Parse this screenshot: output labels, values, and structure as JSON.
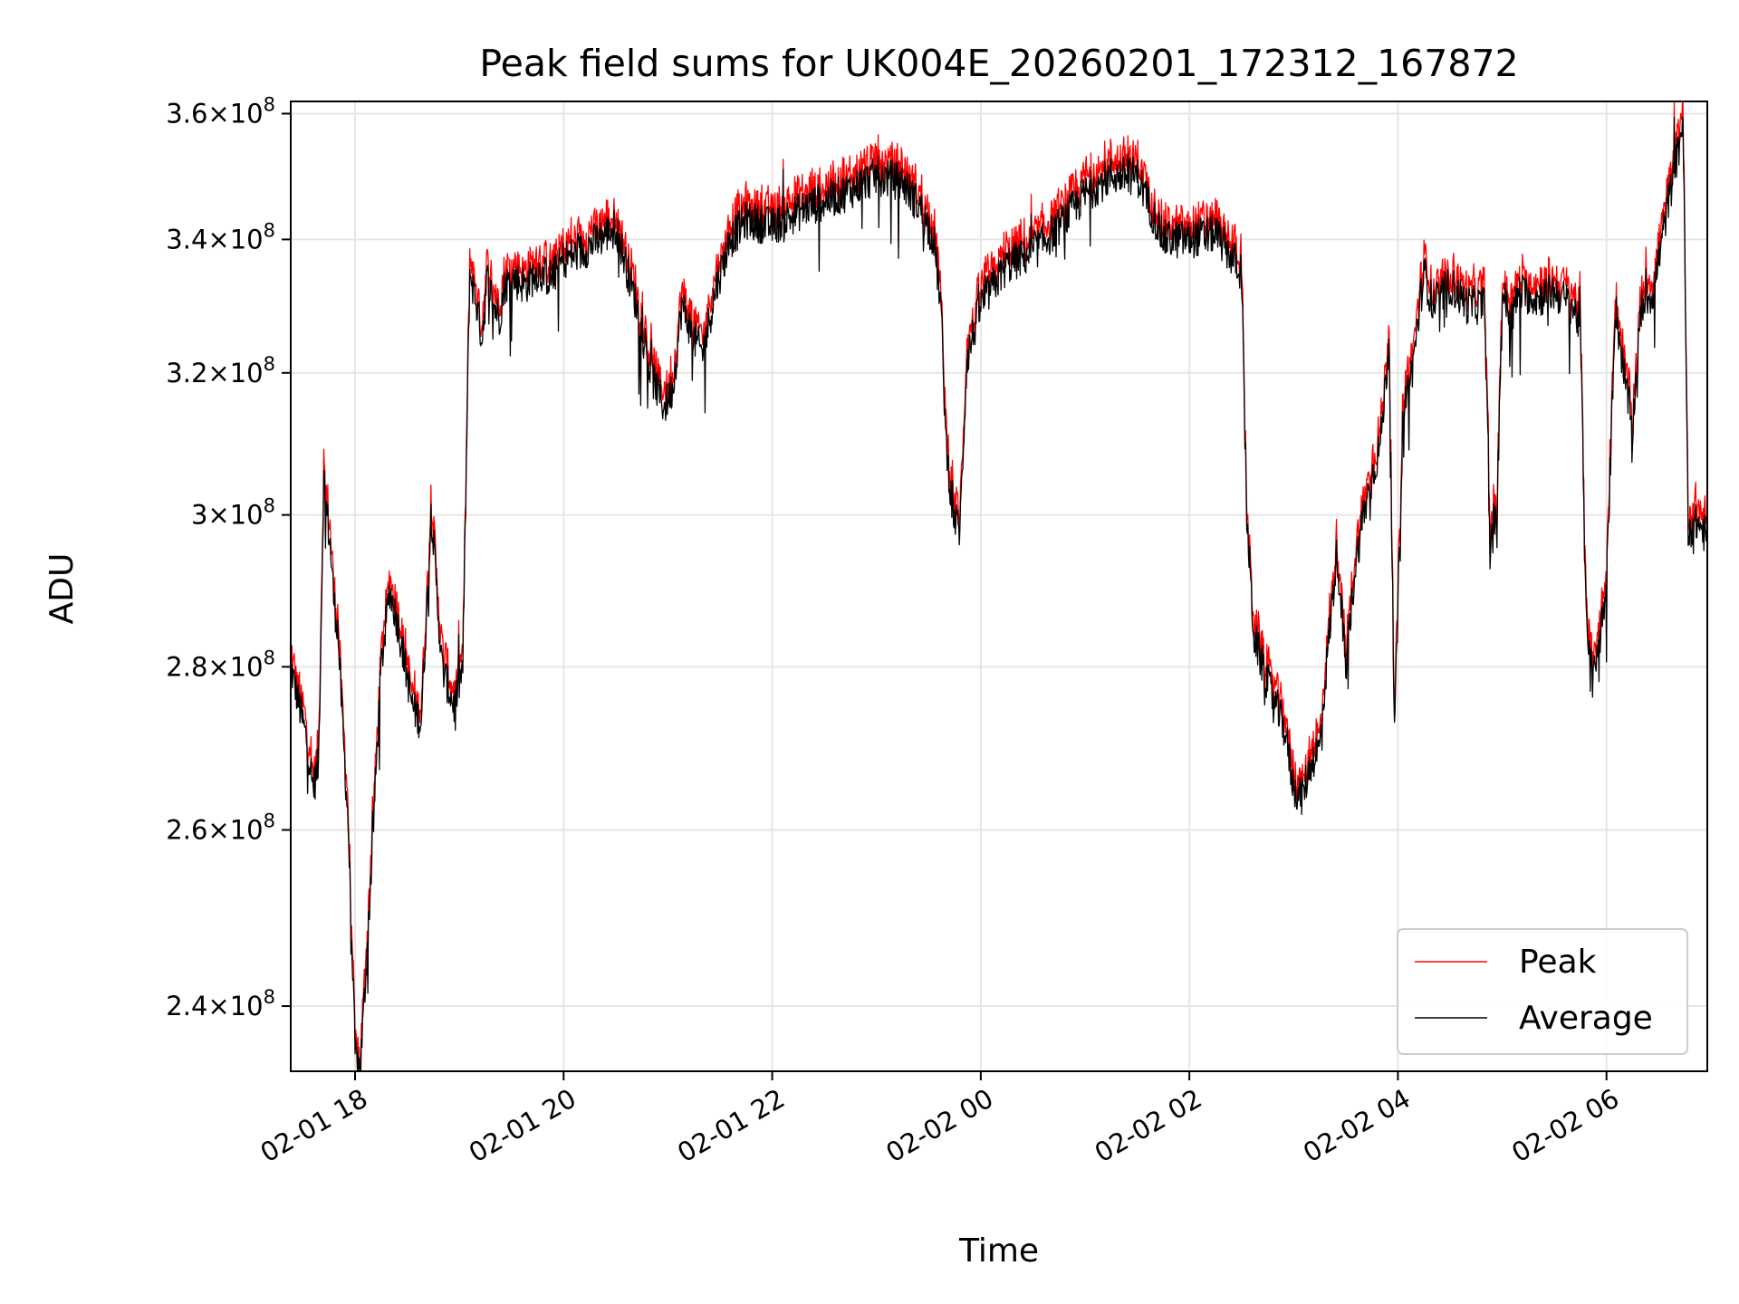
{
  "chart_data": {
    "type": "line",
    "title": "Peak field sums for UK004E_20260201_172312_167872",
    "xlabel": "Time",
    "ylabel": "ADU",
    "y_scale": "log",
    "grid": true,
    "legend_position": "lower-right",
    "xlim": [
      "2026-02-01 17:23",
      "2026-02-02 06:58"
    ],
    "ylim": [
      233000000,
      362000000
    ],
    "x_ticks": [
      {
        "value": "2026-02-01 18:00",
        "label": "02-01 18"
      },
      {
        "value": "2026-02-01 20:00",
        "label": "02-01 20"
      },
      {
        "value": "2026-02-01 22:00",
        "label": "02-01 22"
      },
      {
        "value": "2026-02-02 00:00",
        "label": "02-02 00"
      },
      {
        "value": "2026-02-02 02:00",
        "label": "02-02 02"
      },
      {
        "value": "2026-02-02 04:00",
        "label": "02-02 04"
      },
      {
        "value": "2026-02-02 06:00",
        "label": "02-02 06"
      }
    ],
    "y_ticks": [
      {
        "value": 240000000,
        "mantissa": "2.4",
        "exponent": "8"
      },
      {
        "value": 260000000,
        "mantissa": "2.6",
        "exponent": "8"
      },
      {
        "value": 280000000,
        "mantissa": "2.8",
        "exponent": "8"
      },
      {
        "value": 300000000,
        "mantissa": "3",
        "exponent": "8"
      },
      {
        "value": 320000000,
        "mantissa": "3.2",
        "exponent": "8"
      },
      {
        "value": 340000000,
        "mantissa": "3.4",
        "exponent": "8"
      },
      {
        "value": 360000000,
        "mantissa": "3.6",
        "exponent": "8"
      }
    ],
    "series": [
      {
        "name": "Peak",
        "color": "#ff0000",
        "offset_factor": 1.004
      },
      {
        "name": "Average",
        "color": "#000000",
        "x": [
          "2026-02-01 17:23",
          "2026-02-01 17:27",
          "2026-02-01 17:32",
          "2026-02-01 17:36",
          "2026-02-01 17:39",
          "2026-02-01 17:42",
          "2026-02-01 17:46",
          "2026-02-01 17:48",
          "2026-02-01 17:50",
          "2026-02-01 17:53",
          "2026-02-01 17:56",
          "2026-02-01 18:00",
          "2026-02-01 18:03",
          "2026-02-01 18:08",
          "2026-02-01 18:15",
          "2026-02-01 18:20",
          "2026-02-01 18:25",
          "2026-02-01 18:33",
          "2026-02-01 18:38",
          "2026-02-01 18:44",
          "2026-02-01 18:50",
          "2026-02-01 18:57",
          "2026-02-01 19:02",
          "2026-02-01 19:06",
          "2026-02-01 19:10",
          "2026-02-01 19:13",
          "2026-02-01 19:16",
          "2026-02-01 19:20",
          "2026-02-01 19:23",
          "2026-02-01 19:26",
          "2026-02-01 19:31",
          "2026-02-01 19:38",
          "2026-02-01 19:45",
          "2026-02-01 19:53",
          "2026-02-01 20:00",
          "2026-02-01 20:10",
          "2026-02-01 20:20",
          "2026-02-01 20:30",
          "2026-02-01 20:42",
          "2026-02-01 20:50",
          "2026-02-01 20:58",
          "2026-02-01 21:03",
          "2026-02-01 21:08",
          "2026-02-01 21:15",
          "2026-02-01 21:20",
          "2026-02-01 21:28",
          "2026-02-01 21:36",
          "2026-02-01 21:45",
          "2026-02-01 22:00",
          "2026-02-01 22:20",
          "2026-02-01 22:40",
          "2026-02-01 23:00",
          "2026-02-01 23:15",
          "2026-02-01 23:25",
          "2026-02-01 23:33",
          "2026-02-01 23:37",
          "2026-02-01 23:40",
          "2026-02-01 23:44",
          "2026-02-01 23:48",
          "2026-02-01 23:52",
          "2026-02-02 00:00",
          "2026-02-02 00:15",
          "2026-02-02 00:30",
          "2026-02-02 00:45",
          "2026-02-02 01:00",
          "2026-02-02 01:15",
          "2026-02-02 01:30",
          "2026-02-02 01:45",
          "2026-02-02 02:00",
          "2026-02-02 02:15",
          "2026-02-02 02:30",
          "2026-02-02 02:33",
          "2026-02-02 02:37",
          "2026-02-02 02:45",
          "2026-02-02 02:55",
          "2026-02-02 03:00",
          "2026-02-02 03:05",
          "2026-02-02 03:10",
          "2026-02-02 03:15",
          "2026-02-02 03:20",
          "2026-02-02 03:25",
          "2026-02-02 03:30",
          "2026-02-02 03:35",
          "2026-02-02 03:40",
          "2026-02-02 03:45",
          "2026-02-02 03:50",
          "2026-02-02 03:55",
          "2026-02-02 03:58",
          "2026-02-02 04:03",
          "2026-02-02 04:08",
          "2026-02-02 04:15",
          "2026-02-02 04:20",
          "2026-02-02 04:30",
          "2026-02-02 04:40",
          "2026-02-02 04:50",
          "2026-02-02 04:53",
          "2026-02-02 04:57",
          "2026-02-02 05:00",
          "2026-02-02 05:05",
          "2026-02-02 05:10",
          "2026-02-02 05:20",
          "2026-02-02 05:30",
          "2026-02-02 05:40",
          "2026-02-02 05:45",
          "2026-02-02 05:48",
          "2026-02-02 05:52",
          "2026-02-02 05:57",
          "2026-02-02 06:00",
          "2026-02-02 06:05",
          "2026-02-02 06:10",
          "2026-02-02 06:15",
          "2026-02-02 06:20",
          "2026-02-02 06:27",
          "2026-02-02 06:35",
          "2026-02-02 06:42",
          "2026-02-02 06:44",
          "2026-02-02 06:47",
          "2026-02-02 06:52",
          "2026-02-02 06:58"
        ],
        "values": [
          280000000,
          276000000,
          271000000,
          265000000,
          268000000,
          305000000,
          295000000,
          288000000,
          285000000,
          272000000,
          261000000,
          235000000,
          233000000,
          250000000,
          280000000,
          290000000,
          285000000,
          275000000,
          273000000,
          300000000,
          280000000,
          275000000,
          280000000,
          335000000,
          330000000,
          325000000,
          334000000,
          330000000,
          328000000,
          333000000,
          334000000,
          333000000,
          335000000,
          334000000,
          337000000,
          338000000,
          340000000,
          342000000,
          330000000,
          320000000,
          315000000,
          318000000,
          330000000,
          325000000,
          323000000,
          333000000,
          340000000,
          343000000,
          342000000,
          345000000,
          347000000,
          350000000,
          349000000,
          345000000,
          340000000,
          330000000,
          310000000,
          300000000,
          298000000,
          322000000,
          330000000,
          336000000,
          338000000,
          342000000,
          347000000,
          350000000,
          350000000,
          340000000,
          340000000,
          341000000,
          335000000,
          300000000,
          284000000,
          278000000,
          272000000,
          265000000,
          264000000,
          268000000,
          270000000,
          283000000,
          295000000,
          280000000,
          292000000,
          300000000,
          305000000,
          310000000,
          325000000,
          271000000,
          315000000,
          320000000,
          335000000,
          330000000,
          333000000,
          330000000,
          330000000,
          295000000,
          300000000,
          332000000,
          328000000,
          332000000,
          331000000,
          332000000,
          330000000,
          327000000,
          288000000,
          278000000,
          285000000,
          290000000,
          330000000,
          320000000,
          312000000,
          330000000,
          332000000,
          345000000,
          355000000,
          360000000,
          298000000,
          299000000,
          297000000
        ]
      }
    ]
  }
}
